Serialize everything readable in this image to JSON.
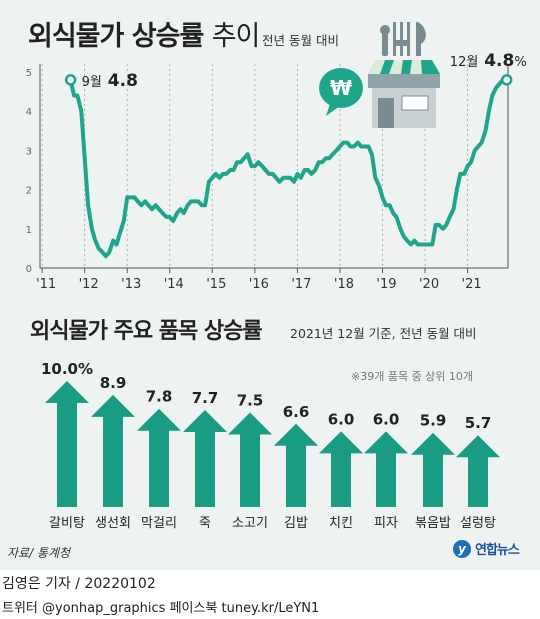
{
  "line_chart": {
    "title_bold": "외식물가 상승률",
    "title_light": "추이",
    "subtitle": "전년 동월 대비",
    "label_start_month": "9월",
    "label_start_value": "4.8",
    "label_end_month": "12월",
    "label_end_value": "4.8",
    "label_end_unit": "%"
  },
  "bar_chart": {
    "title": "외식물가 주요 품목 상승률",
    "subtitle": "2021년 12월 기준, 전년 동월 대비",
    "note": "※39개 품목 중 상위 10개"
  },
  "icons": {
    "bubble_symbol": "₩"
  },
  "footer": {
    "source": "자료/ 통계청",
    "reporter": "김영은 기자 / 20220102",
    "social": "트위터 @yonhap_graphics  페이스북 tuney.kr/LeYN1",
    "logo_text": "연합뉴스",
    "logo_mark": "y"
  },
  "colors": {
    "line": "#1fa58a",
    "bar": "#1a9c84",
    "panel": "#eef3f1"
  },
  "chart_data": [
    {
      "type": "line",
      "title": "외식물가 상승률 추이",
      "subtitle": "전년 동월 대비",
      "ylim": [
        0,
        5
      ],
      "yticks": [
        "0",
        "1",
        "2",
        "3",
        "4",
        "5"
      ],
      "xlim": [
        2011.67,
        2021.92
      ],
      "xticks": [
        {
          "label": "'11",
          "x": 2011.0
        },
        {
          "label": "'12",
          "x": 2012.0
        },
        {
          "label": "'13",
          "x": 2013.0
        },
        {
          "label": "'14",
          "x": 2014.0
        },
        {
          "label": "'15",
          "x": 2015.0
        },
        {
          "label": "'16",
          "x": 2016.0
        },
        {
          "label": "'17",
          "x": 2017.0
        },
        {
          "label": "'18",
          "x": 2018.0
        },
        {
          "label": "'19",
          "x": 2019.0
        },
        {
          "label": "'20",
          "x": 2020.0
        },
        {
          "label": "'21",
          "x": 2021.0
        }
      ],
      "grid": "vertical dashed",
      "series": [
        {
          "points": [
            [
              2011.67,
              4.8
            ],
            [
              2011.75,
              4.4
            ],
            [
              2011.83,
              4.4
            ],
            [
              2011.92,
              4.0
            ],
            [
              2012.0,
              2.8
            ],
            [
              2012.08,
              1.6
            ],
            [
              2012.17,
              1.0
            ],
            [
              2012.25,
              0.7
            ],
            [
              2012.33,
              0.5
            ],
            [
              2012.42,
              0.4
            ],
            [
              2012.5,
              0.3
            ],
            [
              2012.58,
              0.4
            ],
            [
              2012.67,
              0.7
            ],
            [
              2012.75,
              0.6
            ],
            [
              2012.83,
              0.9
            ],
            [
              2012.92,
              1.2
            ],
            [
              2013.0,
              1.8
            ],
            [
              2013.08,
              1.8
            ],
            [
              2013.17,
              1.8
            ],
            [
              2013.25,
              1.7
            ],
            [
              2013.33,
              1.6
            ],
            [
              2013.42,
              1.7
            ],
            [
              2013.5,
              1.6
            ],
            [
              2013.58,
              1.5
            ],
            [
              2013.67,
              1.6
            ],
            [
              2013.75,
              1.5
            ],
            [
              2013.83,
              1.4
            ],
            [
              2013.92,
              1.3
            ],
            [
              2014.0,
              1.3
            ],
            [
              2014.08,
              1.2
            ],
            [
              2014.17,
              1.4
            ],
            [
              2014.25,
              1.5
            ],
            [
              2014.33,
              1.4
            ],
            [
              2014.42,
              1.6
            ],
            [
              2014.5,
              1.7
            ],
            [
              2014.58,
              1.7
            ],
            [
              2014.67,
              1.7
            ],
            [
              2014.75,
              1.6
            ],
            [
              2014.83,
              1.6
            ],
            [
              2014.92,
              2.2
            ],
            [
              2015.0,
              2.3
            ],
            [
              2015.08,
              2.4
            ],
            [
              2015.17,
              2.3
            ],
            [
              2015.25,
              2.4
            ],
            [
              2015.33,
              2.4
            ],
            [
              2015.42,
              2.5
            ],
            [
              2015.5,
              2.5
            ],
            [
              2015.58,
              2.7
            ],
            [
              2015.67,
              2.7
            ],
            [
              2015.75,
              2.8
            ],
            [
              2015.83,
              2.9
            ],
            [
              2015.92,
              2.6
            ],
            [
              2016.0,
              2.6
            ],
            [
              2016.08,
              2.7
            ],
            [
              2016.17,
              2.6
            ],
            [
              2016.25,
              2.5
            ],
            [
              2016.33,
              2.4
            ],
            [
              2016.42,
              2.4
            ],
            [
              2016.5,
              2.3
            ],
            [
              2016.58,
              2.2
            ],
            [
              2016.67,
              2.3
            ],
            [
              2016.75,
              2.3
            ],
            [
              2016.83,
              2.3
            ],
            [
              2016.92,
              2.2
            ],
            [
              2017.0,
              2.4
            ],
            [
              2017.08,
              2.3
            ],
            [
              2017.17,
              2.5
            ],
            [
              2017.25,
              2.5
            ],
            [
              2017.33,
              2.4
            ],
            [
              2017.42,
              2.5
            ],
            [
              2017.5,
              2.7
            ],
            [
              2017.58,
              2.7
            ],
            [
              2017.67,
              2.8
            ],
            [
              2017.75,
              2.8
            ],
            [
              2017.83,
              2.9
            ],
            [
              2017.92,
              3.0
            ],
            [
              2018.0,
              3.1
            ],
            [
              2018.08,
              3.2
            ],
            [
              2018.17,
              3.2
            ],
            [
              2018.25,
              3.1
            ],
            [
              2018.33,
              3.1
            ],
            [
              2018.42,
              3.2
            ],
            [
              2018.5,
              3.1
            ],
            [
              2018.58,
              3.1
            ],
            [
              2018.67,
              3.1
            ],
            [
              2018.75,
              2.9
            ],
            [
              2018.83,
              2.3
            ],
            [
              2018.92,
              2.1
            ],
            [
              2019.0,
              1.8
            ],
            [
              2019.08,
              1.6
            ],
            [
              2019.17,
              1.6
            ],
            [
              2019.25,
              1.4
            ],
            [
              2019.33,
              1.3
            ],
            [
              2019.42,
              1.0
            ],
            [
              2019.5,
              0.8
            ],
            [
              2019.58,
              0.7
            ],
            [
              2019.67,
              0.6
            ],
            [
              2019.75,
              0.7
            ],
            [
              2019.83,
              0.6
            ],
            [
              2019.92,
              0.6
            ],
            [
              2020.0,
              0.6
            ],
            [
              2020.08,
              0.6
            ],
            [
              2020.17,
              0.6
            ],
            [
              2020.25,
              1.1
            ],
            [
              2020.33,
              1.1
            ],
            [
              2020.42,
              1.0
            ],
            [
              2020.5,
              1.1
            ],
            [
              2020.58,
              1.3
            ],
            [
              2020.67,
              1.5
            ],
            [
              2020.75,
              2.0
            ],
            [
              2020.83,
              2.4
            ],
            [
              2020.92,
              2.4
            ],
            [
              2021.0,
              2.6
            ],
            [
              2021.08,
              2.7
            ],
            [
              2021.17,
              3.0
            ],
            [
              2021.25,
              3.1
            ],
            [
              2021.33,
              3.2
            ],
            [
              2021.42,
              3.5
            ],
            [
              2021.5,
              4.0
            ],
            [
              2021.58,
              4.4
            ],
            [
              2021.67,
              4.6
            ],
            [
              2021.75,
              4.7
            ],
            [
              2021.83,
              4.8
            ],
            [
              2021.92,
              4.8
            ]
          ]
        }
      ],
      "annotations": [
        {
          "text": "9월 4.8",
          "x": 2011.67,
          "y": 4.8
        },
        {
          "text": "12월 4.8%",
          "x": 2021.92,
          "y": 4.8
        }
      ]
    },
    {
      "type": "bar",
      "title": "외식물가 주요 품목 상승률",
      "subtitle": "2021년 12월 기준, 전년 동월 대비",
      "categories": [
        "갈비탕",
        "생선회",
        "막걸리",
        "죽",
        "소고기",
        "김밥",
        "치킨",
        "피자",
        "볶음밥",
        "설렁탕"
      ],
      "values": [
        10.0,
        8.9,
        7.8,
        7.7,
        7.5,
        6.6,
        6.0,
        6.0,
        5.9,
        5.7
      ],
      "value_labels": [
        "10.0%",
        "8.9",
        "7.8",
        "7.7",
        "7.5",
        "6.6",
        "6.0",
        "6.0",
        "5.9",
        "5.7"
      ],
      "note": "※39개 품목 중 상위 10개"
    }
  ]
}
